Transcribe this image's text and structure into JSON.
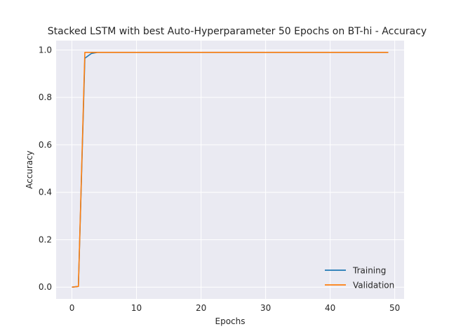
{
  "chart_data": {
    "type": "line",
    "title": "Stacked LSTM with best Auto-Hyperparameter 50 Epochs on BT-hi - Accuracy",
    "xlabel": "Epochs",
    "ylabel": "Accuracy",
    "xlim": [
      -2.45,
      51.45
    ],
    "ylim": [
      -0.0495,
      1.0395
    ],
    "xticks": [
      0,
      10,
      20,
      30,
      40,
      50
    ],
    "yticks": [
      0.0,
      0.2,
      0.4,
      0.6,
      0.8,
      1.0
    ],
    "grid": true,
    "legend_position": "lower-right",
    "series": [
      {
        "name": "Training",
        "color": "#1f77b4",
        "x": [
          0,
          1,
          2,
          3,
          4,
          5,
          6,
          7,
          8,
          9,
          10,
          11,
          12,
          13,
          14,
          15,
          16,
          17,
          18,
          19,
          20,
          21,
          22,
          23,
          24,
          25,
          26,
          27,
          28,
          29,
          30,
          31,
          32,
          33,
          34,
          35,
          36,
          37,
          38,
          39,
          40,
          41,
          42,
          43,
          44,
          45,
          46,
          47,
          48,
          49
        ],
        "y": [
          0.0,
          0.003,
          0.965,
          0.985,
          0.99,
          0.99,
          0.99,
          0.99,
          0.99,
          0.99,
          0.99,
          0.99,
          0.99,
          0.99,
          0.99,
          0.99,
          0.99,
          0.99,
          0.99,
          0.99,
          0.99,
          0.99,
          0.99,
          0.99,
          0.99,
          0.99,
          0.99,
          0.99,
          0.99,
          0.99,
          0.99,
          0.99,
          0.99,
          0.99,
          0.99,
          0.99,
          0.99,
          0.99,
          0.99,
          0.99,
          0.99,
          0.99,
          0.99,
          0.99,
          0.99,
          0.99,
          0.99,
          0.99,
          0.99,
          0.99
        ]
      },
      {
        "name": "Validation",
        "color": "#ff7f0e",
        "x": [
          0,
          1,
          2,
          3,
          4,
          5,
          6,
          7,
          8,
          9,
          10,
          11,
          12,
          13,
          14,
          15,
          16,
          17,
          18,
          19,
          20,
          21,
          22,
          23,
          24,
          25,
          26,
          27,
          28,
          29,
          30,
          31,
          32,
          33,
          34,
          35,
          36,
          37,
          38,
          39,
          40,
          41,
          42,
          43,
          44,
          45,
          46,
          47,
          48,
          49
        ],
        "y": [
          0.0,
          0.003,
          0.99,
          0.99,
          0.99,
          0.99,
          0.99,
          0.99,
          0.99,
          0.99,
          0.99,
          0.99,
          0.99,
          0.99,
          0.99,
          0.99,
          0.99,
          0.99,
          0.99,
          0.99,
          0.99,
          0.99,
          0.99,
          0.99,
          0.99,
          0.99,
          0.99,
          0.99,
          0.99,
          0.99,
          0.99,
          0.99,
          0.99,
          0.99,
          0.99,
          0.99,
          0.99,
          0.99,
          0.99,
          0.99,
          0.99,
          0.99,
          0.99,
          0.99,
          0.99,
          0.99,
          0.99,
          0.99,
          0.99,
          0.99
        ]
      }
    ]
  },
  "style": {
    "background": "#ffffff",
    "plot_background": "#eaeaf2",
    "grid_color": "#ffffff",
    "text_color": "#262626"
  }
}
